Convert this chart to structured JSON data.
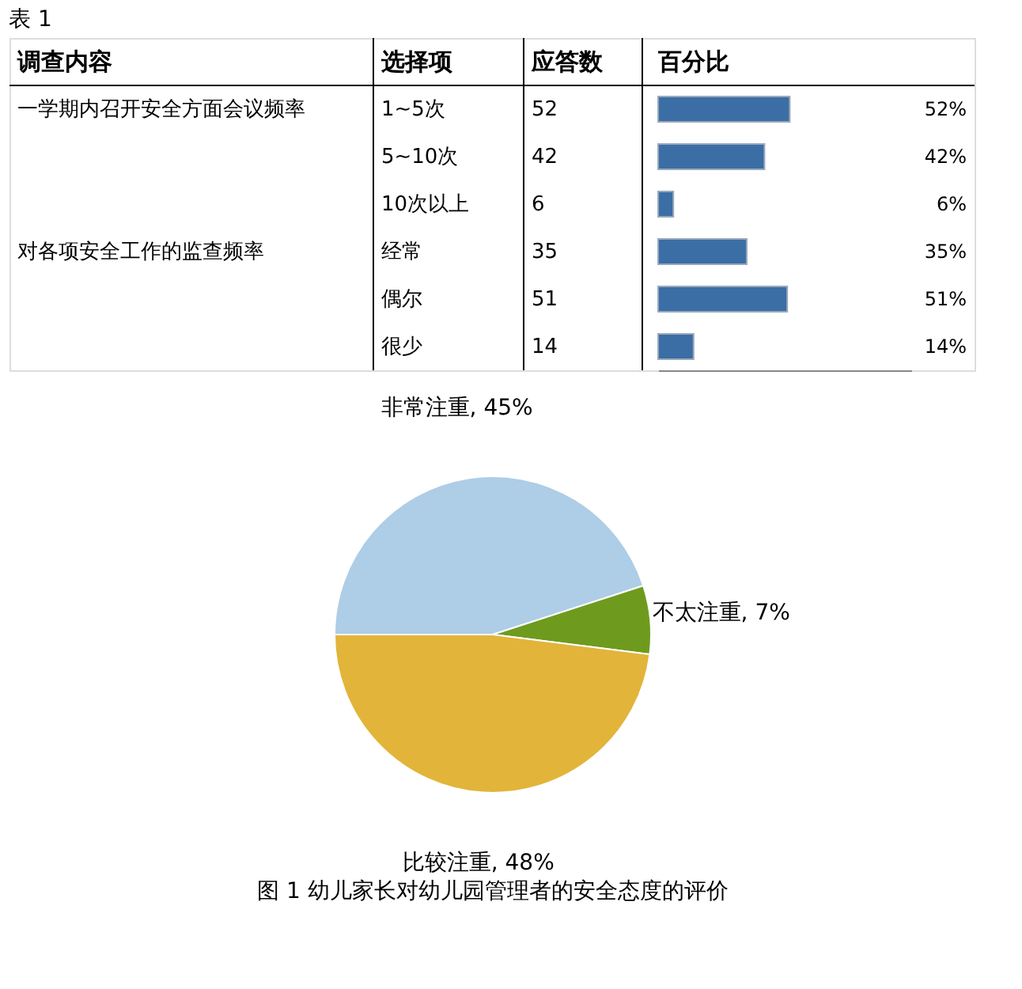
{
  "chart_data": [
    {
      "type": "bar",
      "orientation": "horizontal",
      "ylabel": "选择项",
      "xlabel": "百分比",
      "categories": [
        "1~5次",
        "5~10次",
        "10次以上",
        "经常",
        "偶尔",
        "很少"
      ],
      "values": [
        52,
        42,
        6,
        35,
        51,
        14
      ],
      "color": "#3a6ea5",
      "xlim": [
        0,
        100
      ],
      "tick_labels": false,
      "value_labels": [
        "52%",
        "42%",
        "6%",
        "35%",
        "51%",
        "14%"
      ],
      "annotations": [
        "表 1",
        "调查内容",
        "应答数",
        "一学期内召开安全方面会议频率",
        "对各项安全工作的监查频率",
        "52",
        "42",
        "6",
        "35",
        "51",
        "14"
      ]
    },
    {
      "type": "pie",
      "title": "图 1 幼儿家长对幼儿园管理者的安全态度的评价",
      "categories": [
        "非常注重",
        "不太注重",
        "比较注重"
      ],
      "values": [
        45,
        7,
        48
      ],
      "colors": [
        "#aecde6",
        "#6e9b1e",
        "#e2b43a"
      ],
      "value_labels": [
        "45%",
        "7%",
        "48%"
      ]
    }
  ]
}
